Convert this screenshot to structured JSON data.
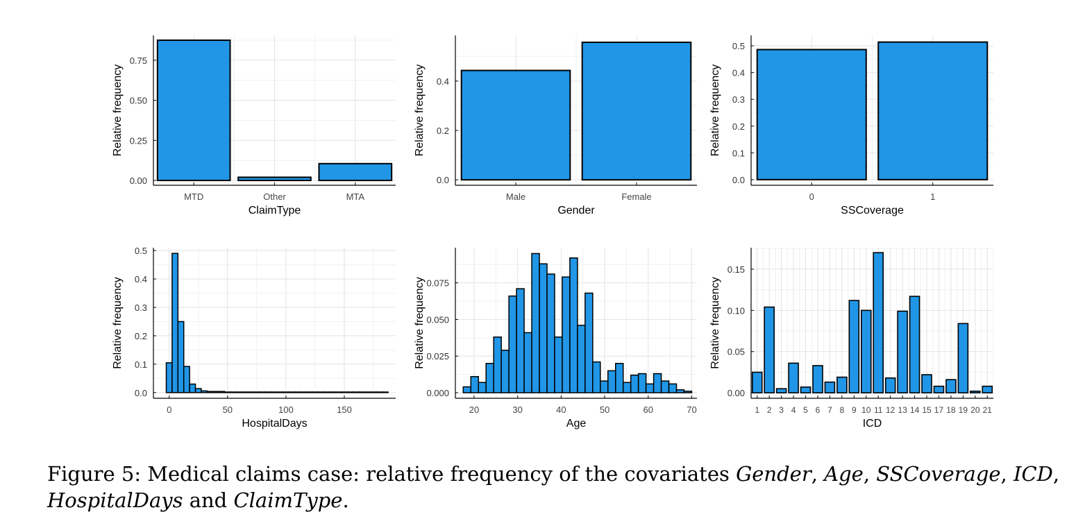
{
  "chart_data": [
    {
      "type": "bar",
      "xlabel": "ClaimType",
      "ylabel": "Relative frequency",
      "categories": [
        "MTD",
        "Other",
        "MTA"
      ],
      "values": [
        0.875,
        0.02,
        0.105
      ],
      "ylim": [
        -0.03,
        0.905
      ],
      "yticks": [
        0.0,
        0.25,
        0.5,
        0.75
      ],
      "ytick_labels": [
        "0.00",
        "0.25",
        "0.50",
        "0.75"
      ],
      "grid": true,
      "color": "#2196e6"
    },
    {
      "type": "bar",
      "xlabel": "Gender",
      "ylabel": "Relative frequency",
      "categories": [
        "Male",
        "Female"
      ],
      "values": [
        0.443,
        0.557
      ],
      "ylim": [
        -0.022,
        0.585
      ],
      "yticks": [
        0.0,
        0.2,
        0.4
      ],
      "ytick_labels": [
        "0.0",
        "0.2",
        "0.4"
      ],
      "grid": true,
      "color": "#2196e6"
    },
    {
      "type": "bar",
      "xlabel": "SSCoverage",
      "ylabel": "Relative frequency",
      "categories": [
        "0",
        "1"
      ],
      "values": [
        0.486,
        0.514
      ],
      "ylim": [
        -0.021,
        0.539
      ],
      "yticks": [
        0.0,
        0.1,
        0.2,
        0.3,
        0.4,
        0.5
      ],
      "ytick_labels": [
        "0.0",
        "0.1",
        "0.2",
        "0.3",
        "0.4",
        "0.5"
      ],
      "grid": true,
      "color": "#2196e6"
    },
    {
      "type": "histogram",
      "xlabel": "HospitalDays",
      "ylabel": "Relative frequency",
      "bin_width": 5,
      "bins_start": -2.5,
      "values": [
        0.105,
        0.49,
        0.25,
        0.092,
        0.03,
        0.014,
        0.006,
        0.004,
        0.004,
        0.004,
        0.002,
        0.002,
        0.002,
        0.002,
        0.002,
        0.002,
        0.002,
        0.002,
        0.002,
        0.002,
        0.002,
        0.002,
        0.002,
        0.002,
        0.002,
        0.002,
        0.002,
        0.002,
        0.002,
        0.002,
        0.002,
        0.002,
        0.002,
        0.002,
        0.002,
        0.002,
        0.002,
        0.002
      ],
      "xlim": [
        -13.5,
        194
      ],
      "ylim": [
        -0.02,
        0.51
      ],
      "xticks": [
        0,
        50,
        100,
        150
      ],
      "xtick_labels": [
        "0",
        "50",
        "100",
        "150"
      ],
      "yticks": [
        0.0,
        0.1,
        0.2,
        0.3,
        0.4,
        0.5
      ],
      "ytick_labels": [
        "0.0",
        "0.1",
        "0.2",
        "0.3",
        "0.4",
        "0.5"
      ],
      "grid": true,
      "color": "#2196e6"
    },
    {
      "type": "histogram",
      "xlabel": "Age",
      "ylabel": "Relative frequency",
      "bin_width": 1.75,
      "bins_start": 17.5,
      "values": [
        0.004,
        0.011,
        0.007,
        0.02,
        0.038,
        0.029,
        0.066,
        0.071,
        0.041,
        0.095,
        0.088,
        0.081,
        0.038,
        0.079,
        0.092,
        0.046,
        0.068,
        0.021,
        0.008,
        0.015,
        0.02,
        0.007,
        0.012,
        0.013,
        0.006,
        0.013,
        0.008,
        0.006,
        0.002,
        0.001
      ],
      "xlim": [
        15.7,
        71.2
      ],
      "ylim": [
        -0.0038,
        0.099
      ],
      "xticks": [
        20,
        30,
        40,
        50,
        60,
        70
      ],
      "xtick_labels": [
        "20",
        "30",
        "40",
        "50",
        "60",
        "70"
      ],
      "yticks": [
        0.0,
        0.025,
        0.05,
        0.075
      ],
      "ytick_labels": [
        "0.000",
        "0.025",
        "0.050",
        "0.075"
      ],
      "grid": true,
      "color": "#2196e6"
    },
    {
      "type": "bar",
      "xlabel": "ICD",
      "ylabel": "Relative frequency",
      "categories": [
        "1",
        "2",
        "3",
        "4",
        "5",
        "6",
        "7",
        "8",
        "9",
        "10",
        "11",
        "12",
        "13",
        "14",
        "15",
        "17",
        "18",
        "19",
        "20",
        "21"
      ],
      "values": [
        0.025,
        0.104,
        0.005,
        0.036,
        0.007,
        0.033,
        0.013,
        0.019,
        0.112,
        0.1,
        0.17,
        0.018,
        0.099,
        0.117,
        0.022,
        0.008,
        0.016,
        0.084,
        0.002,
        0.008
      ],
      "ylim": [
        -0.0066,
        0.176
      ],
      "yticks": [
        0.0,
        0.05,
        0.1,
        0.15
      ],
      "ytick_labels": [
        "0.00",
        "0.05",
        "0.10",
        "0.15"
      ],
      "grid": true,
      "color": "#2196e6"
    }
  ],
  "caption": {
    "prefix": "Figure 5: Medical claims case: relative frequency of the covariates ",
    "v1": "Gender",
    "sep1": ", ",
    "v2": "Age",
    "sep2": ", ",
    "v3": "SSCoverage",
    "sep3": ", ",
    "v4": "ICD",
    "sep4": ",",
    "v5": "HospitalDays",
    "and": " and ",
    "v6": "ClaimType",
    "end": "."
  }
}
